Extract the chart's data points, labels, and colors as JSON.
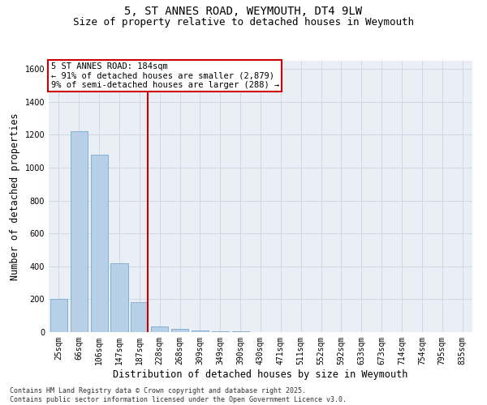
{
  "title": "5, ST ANNES ROAD, WEYMOUTH, DT4 9LW",
  "subtitle": "Size of property relative to detached houses in Weymouth",
  "xlabel": "Distribution of detached houses by size in Weymouth",
  "ylabel": "Number of detached properties",
  "categories": [
    "25sqm",
    "66sqm",
    "106sqm",
    "147sqm",
    "187sqm",
    "228sqm",
    "268sqm",
    "309sqm",
    "349sqm",
    "390sqm",
    "430sqm",
    "471sqm",
    "511sqm",
    "552sqm",
    "592sqm",
    "633sqm",
    "673sqm",
    "714sqm",
    "754sqm",
    "795sqm",
    "835sqm"
  ],
  "values": [
    200,
    1220,
    1080,
    420,
    180,
    35,
    20,
    10,
    5,
    5,
    0,
    0,
    0,
    0,
    0,
    0,
    0,
    0,
    0,
    0,
    0
  ],
  "bar_color": "#b8cfe8",
  "bar_edge_color": "#7aaad0",
  "vline_color": "#cc0000",
  "vline_index": 4,
  "annotation_text": "5 ST ANNES ROAD: 184sqm\n← 91% of detached houses are smaller (2,879)\n9% of semi-detached houses are larger (288) →",
  "annotation_box_color": "#cc0000",
  "ylim": [
    0,
    1650
  ],
  "yticks": [
    0,
    200,
    400,
    600,
    800,
    1000,
    1200,
    1400,
    1600
  ],
  "grid_color": "#ccd5e0",
  "bg_color": "#eaeff5",
  "footnote": "Contains HM Land Registry data © Crown copyright and database right 2025.\nContains public sector information licensed under the Open Government Licence v3.0.",
  "title_fontsize": 10,
  "subtitle_fontsize": 9,
  "xlabel_fontsize": 8.5,
  "ylabel_fontsize": 8.5,
  "tick_fontsize": 7,
  "annotation_fontsize": 7.5,
  "footnote_fontsize": 6
}
